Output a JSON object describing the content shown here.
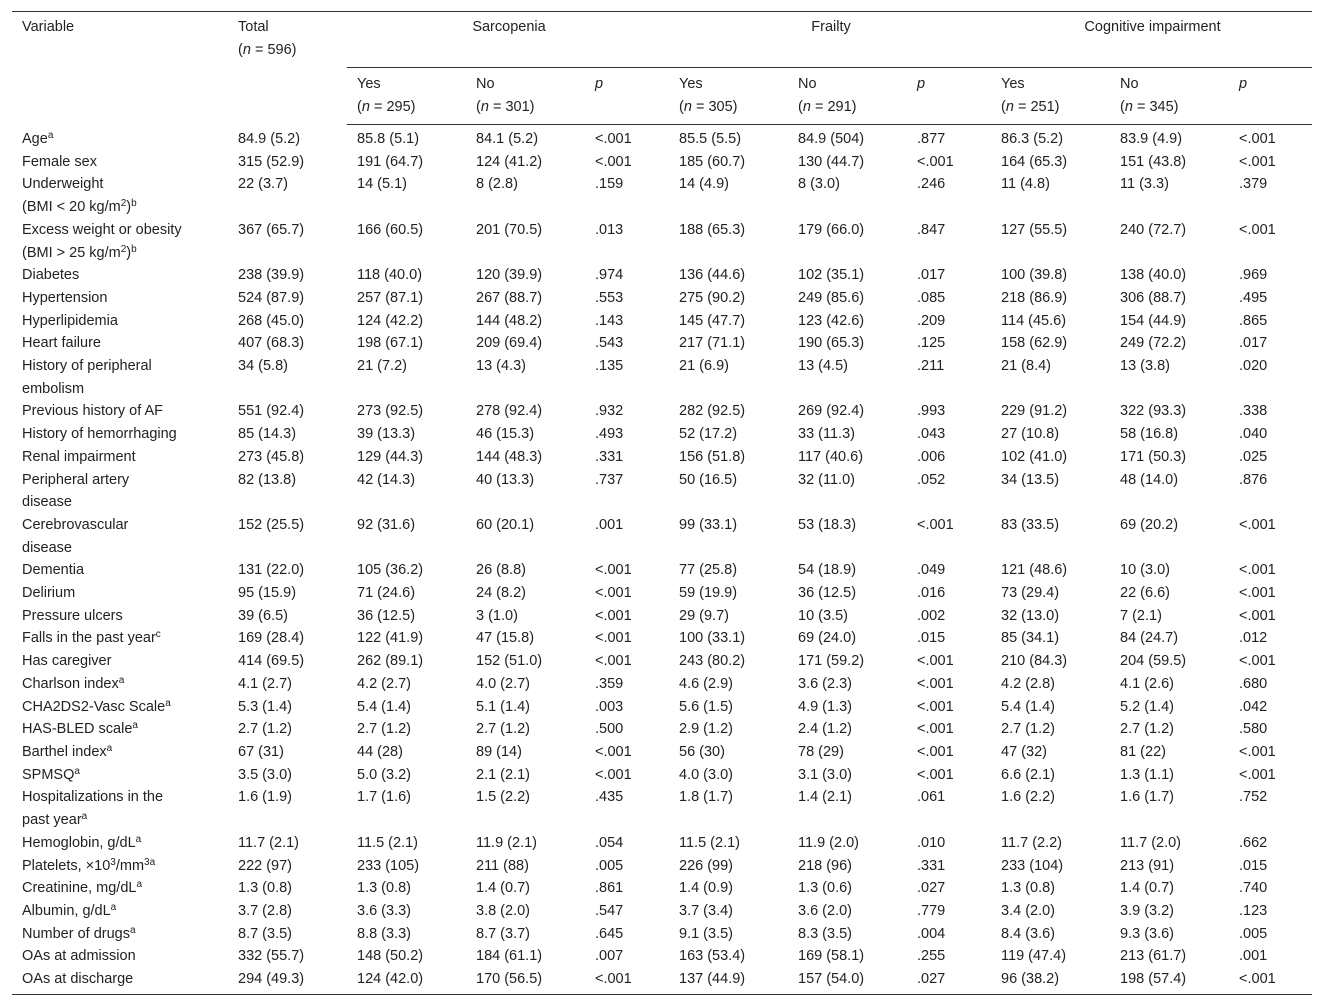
{
  "table": {
    "header_top": [
      [
        [
          "Variable"
        ]
      ],
      [
        [
          "Total"
        ],
        [
          "(",
          {
            "i": "n"
          },
          " = 596)"
        ]
      ],
      [
        [
          "Sarcopenia"
        ]
      ],
      [
        [
          "Frailty"
        ]
      ],
      [
        [
          "Cognitive impairment"
        ]
      ]
    ],
    "header_sub": [
      [
        [
          "Yes"
        ],
        [
          "(",
          {
            "i": "n"
          },
          " = 295)"
        ]
      ],
      [
        [
          "No"
        ],
        [
          "(",
          {
            "i": "n"
          },
          " = 301)"
        ]
      ],
      [
        [
          {
            "i": "p"
          }
        ]
      ],
      [
        [
          "Yes"
        ],
        [
          "(",
          {
            "i": "n"
          },
          " = 305)"
        ]
      ],
      [
        [
          "No"
        ],
        [
          "(",
          {
            "i": "n"
          },
          " = 291)"
        ]
      ],
      [
        [
          {
            "i": "p"
          }
        ]
      ],
      [
        [
          "Yes"
        ],
        [
          "(",
          {
            "i": "n"
          },
          " = 251)"
        ]
      ],
      [
        [
          "No"
        ],
        [
          "(",
          {
            "i": "n"
          },
          " = 345)"
        ]
      ],
      [
        [
          {
            "i": "p"
          }
        ]
      ]
    ],
    "rows": [
      {
        "label": [
          [
            "Age",
            {
              "sup": "a"
            }
          ]
        ],
        "values": [
          "84.9 (5.2)",
          "85.8 (5.1)",
          "84.1 (5.2)",
          "<.001",
          "85.5 (5.5)",
          "84.9 (504)",
          ".877",
          "86.3 (5.2)",
          "83.9 (4.9)",
          "<.001"
        ]
      },
      {
        "label": [
          [
            "Female sex"
          ]
        ],
        "values": [
          "315 (52.9)",
          "191 (64.7)",
          "124 (41.2)",
          "<.001",
          "185 (60.7)",
          "130 (44.7)",
          "<.001",
          "164 (65.3)",
          "151 (43.8)",
          "<.001"
        ]
      },
      {
        "label": [
          [
            "Underweight"
          ],
          [
            "(BMI < 20 kg/m",
            {
              "sup": "2"
            },
            ")",
            {
              "sup": "b"
            }
          ]
        ],
        "values": [
          "22 (3.7)",
          "14 (5.1)",
          "8 (2.8)",
          ".159",
          "14 (4.9)",
          "8 (3.0)",
          ".246",
          "11 (4.8)",
          "11 (3.3)",
          ".379"
        ]
      },
      {
        "label": [
          [
            "Excess weight or obesity"
          ],
          [
            "(BMI > 25 kg/m",
            {
              "sup": "2"
            },
            ")",
            {
              "sup": "b"
            }
          ]
        ],
        "values": [
          "367 (65.7)",
          "166 (60.5)",
          "201 (70.5)",
          ".013",
          "188 (65.3)",
          "179 (66.0)",
          ".847",
          "127 (55.5)",
          "240 (72.7)",
          "<.001"
        ]
      },
      {
        "label": [
          [
            "Diabetes"
          ]
        ],
        "values": [
          "238 (39.9)",
          "118 (40.0)",
          "120 (39.9)",
          ".974",
          "136 (44.6)",
          "102 (35.1)",
          ".017",
          "100 (39.8)",
          "138 (40.0)",
          ".969"
        ]
      },
      {
        "label": [
          [
            "Hypertension"
          ]
        ],
        "values": [
          "524 (87.9)",
          "257 (87.1)",
          "267 (88.7)",
          ".553",
          "275 (90.2)",
          "249 (85.6)",
          ".085",
          "218 (86.9)",
          "306 (88.7)",
          ".495"
        ]
      },
      {
        "label": [
          [
            "Hyperlipidemia"
          ]
        ],
        "values": [
          "268 (45.0)",
          "124 (42.2)",
          "144 (48.2)",
          ".143",
          "145 (47.7)",
          "123 (42.6)",
          ".209",
          "114 (45.6)",
          "154 (44.9)",
          ".865"
        ]
      },
      {
        "label": [
          [
            "Heart failure"
          ]
        ],
        "values": [
          "407 (68.3)",
          "198 (67.1)",
          "209 (69.4)",
          ".543",
          "217 (71.1)",
          "190 (65.3)",
          ".125",
          "158 (62.9)",
          "249 (72.2)",
          ".017"
        ]
      },
      {
        "label": [
          [
            "History of peripheral"
          ],
          [
            "embolism"
          ]
        ],
        "values": [
          "34 (5.8)",
          "21 (7.2)",
          "13 (4.3)",
          ".135",
          "21 (6.9)",
          "13 (4.5)",
          ".211",
          "21 (8.4)",
          "13 (3.8)",
          ".020"
        ]
      },
      {
        "label": [
          [
            "Previous history of AF"
          ]
        ],
        "values": [
          "551 (92.4)",
          "273 (92.5)",
          "278 (92.4)",
          ".932",
          "282 (92.5)",
          "269 (92.4)",
          ".993",
          "229 (91.2)",
          "322 (93.3)",
          ".338"
        ]
      },
      {
        "label": [
          [
            "History of hemorrhaging"
          ]
        ],
        "values": [
          "85 (14.3)",
          "39 (13.3)",
          "46 (15.3)",
          ".493",
          "52 (17.2)",
          "33 (11.3)",
          ".043",
          "27 (10.8)",
          "58 (16.8)",
          ".040"
        ]
      },
      {
        "label": [
          [
            "Renal impairment"
          ]
        ],
        "values": [
          "273 (45.8)",
          "129 (44.3)",
          "144 (48.3)",
          ".331",
          "156 (51.8)",
          "117 (40.6)",
          ".006",
          "102 (41.0)",
          "171 (50.3)",
          ".025"
        ]
      },
      {
        "label": [
          [
            "Peripheral artery"
          ],
          [
            "disease"
          ]
        ],
        "values": [
          "82 (13.8)",
          "42 (14.3)",
          "40 (13.3)",
          ".737",
          "50 (16.5)",
          "32 (11.0)",
          ".052",
          "34 (13.5)",
          "48 (14.0)",
          ".876"
        ]
      },
      {
        "label": [
          [
            "Cerebrovascular"
          ],
          [
            "disease"
          ]
        ],
        "values": [
          "152 (25.5)",
          "92 (31.6)",
          "60 (20.1)",
          ".001",
          "99 (33.1)",
          "53 (18.3)",
          "<.001",
          "83 (33.5)",
          "69 (20.2)",
          "<.001"
        ]
      },
      {
        "label": [
          [
            "Dementia"
          ]
        ],
        "values": [
          "131 (22.0)",
          "105 (36.2)",
          "26 (8.8)",
          "<.001",
          "77 (25.8)",
          "54 (18.9)",
          ".049",
          "121 (48.6)",
          "10 (3.0)",
          "<.001"
        ]
      },
      {
        "label": [
          [
            "Delirium"
          ]
        ],
        "values": [
          "95 (15.9)",
          "71 (24.6)",
          "24 (8.2)",
          "<.001",
          "59 (19.9)",
          "36 (12.5)",
          ".016",
          "73 (29.4)",
          "22 (6.6)",
          "<.001"
        ]
      },
      {
        "label": [
          [
            "Pressure ulcers"
          ]
        ],
        "values": [
          "39 (6.5)",
          "36 (12.5)",
          "3 (1.0)",
          "<.001",
          "29 (9.7)",
          "10 (3.5)",
          ".002",
          "32 (13.0)",
          "7 (2.1)",
          "<.001"
        ]
      },
      {
        "label": [
          [
            "Falls in the past year",
            {
              "sup": "c"
            }
          ]
        ],
        "values": [
          "169 (28.4)",
          "122 (41.9)",
          "47 (15.8)",
          "<.001",
          "100 (33.1)",
          "69 (24.0)",
          ".015",
          "85 (34.1)",
          "84 (24.7)",
          ".012"
        ]
      },
      {
        "label": [
          [
            "Has caregiver"
          ]
        ],
        "values": [
          "414 (69.5)",
          "262 (89.1)",
          "152 (51.0)",
          "<.001",
          "243 (80.2)",
          "171 (59.2)",
          "<.001",
          "210 (84.3)",
          "204 (59.5)",
          "<.001"
        ]
      },
      {
        "label": [
          [
            "Charlson index",
            {
              "sup": "a"
            }
          ]
        ],
        "values": [
          "4.1 (2.7)",
          "4.2 (2.7)",
          "4.0 (2.7)",
          ".359",
          "4.6 (2.9)",
          "3.6 (2.3)",
          "<.001",
          "4.2 (2.8)",
          "4.1 (2.6)",
          ".680"
        ]
      },
      {
        "label": [
          [
            "CHA2DS2-Vasc Scale",
            {
              "sup": "a"
            }
          ]
        ],
        "values": [
          "5.3 (1.4)",
          "5.4 (1.4)",
          "5.1 (1.4)",
          ".003",
          "5.6 (1.5)",
          "4.9 (1.3)",
          "<.001",
          "5.4 (1.4)",
          "5.2 (1.4)",
          ".042"
        ]
      },
      {
        "label": [
          [
            "HAS-BLED scale",
            {
              "sup": "a"
            }
          ]
        ],
        "values": [
          "2.7 (1.2)",
          "2.7 (1.2)",
          "2.7 (1.2)",
          ".500",
          "2.9 (1.2)",
          "2.4 (1.2)",
          "<.001",
          "2.7 (1.2)",
          "2.7 (1.2)",
          ".580"
        ]
      },
      {
        "label": [
          [
            "Barthel index",
            {
              "sup": "a"
            }
          ]
        ],
        "values": [
          "67 (31)",
          "44 (28)",
          "89 (14)",
          "<.001",
          "56 (30)",
          "78 (29)",
          "<.001",
          "47 (32)",
          "81 (22)",
          "<.001"
        ]
      },
      {
        "label": [
          [
            "SPMSQ",
            {
              "sup": "a"
            }
          ]
        ],
        "values": [
          "3.5 (3.0)",
          "5.0 (3.2)",
          "2.1 (2.1)",
          "<.001",
          "4.0 (3.0)",
          "3.1 (3.0)",
          "<.001",
          "6.6 (2.1)",
          "1.3 (1.1)",
          "<.001"
        ]
      },
      {
        "label": [
          [
            "Hospitalizations in the"
          ],
          [
            "past year",
            {
              "sup": "a"
            }
          ]
        ],
        "values": [
          "1.6 (1.9)",
          "1.7 (1.6)",
          "1.5 (2.2)",
          ".435",
          "1.8 (1.7)",
          "1.4 (2.1)",
          ".061",
          "1.6 (2.2)",
          "1.6 (1.7)",
          ".752"
        ]
      },
      {
        "label": [
          [
            "Hemoglobin, g/dL",
            {
              "sup": "a"
            }
          ]
        ],
        "values": [
          "11.7 (2.1)",
          "11.5 (2.1)",
          "11.9 (2.1)",
          ".054",
          "11.5 (2.1)",
          "11.9 (2.0)",
          ".010",
          "11.7 (2.2)",
          "11.7 (2.0)",
          ".662"
        ]
      },
      {
        "label": [
          [
            "Platelets, ×10",
            {
              "sup": "3"
            },
            "/mm",
            {
              "sup": "3a"
            }
          ]
        ],
        "values": [
          "222 (97)",
          "233 (105)",
          "211 (88)",
          ".005",
          "226 (99)",
          "218 (96)",
          ".331",
          "233 (104)",
          "213 (91)",
          ".015"
        ]
      },
      {
        "label": [
          [
            "Creatinine, mg/dL",
            {
              "sup": "a"
            }
          ]
        ],
        "values": [
          "1.3 (0.8)",
          "1.3 (0.8)",
          "1.4 (0.7)",
          ".861",
          "1.4 (0.9)",
          "1.3 (0.6)",
          ".027",
          "1.3 (0.8)",
          "1.4 (0.7)",
          ".740"
        ]
      },
      {
        "label": [
          [
            "Albumin, g/dL",
            {
              "sup": "a"
            }
          ]
        ],
        "values": [
          "3.7 (2.8)",
          "3.6 (3.3)",
          "3.8 (2.0)",
          ".547",
          "3.7 (3.4)",
          "3.6 (2.0)",
          ".779",
          "3.4 (2.0)",
          "3.9 (3.2)",
          ".123"
        ]
      },
      {
        "label": [
          [
            "Number of drugs",
            {
              "sup": "a"
            }
          ]
        ],
        "values": [
          "8.7 (3.5)",
          "8.8 (3.3)",
          "8.7 (3.7)",
          ".645",
          "9.1 (3.5)",
          "8.3 (3.5)",
          ".004",
          "8.4 (3.6)",
          "9.3 (3.6)",
          ".005"
        ]
      },
      {
        "label": [
          [
            "OAs at admission"
          ]
        ],
        "values": [
          "332 (55.7)",
          "148 (50.2)",
          "184 (61.1)",
          ".007",
          "163 (53.4)",
          "169 (58.1)",
          ".255",
          "119 (47.4)",
          "213 (61.7)",
          ".001"
        ]
      },
      {
        "label": [
          [
            "OAs at discharge"
          ]
        ],
        "values": [
          "294 (49.3)",
          "124 (42.0)",
          "170 (56.5)",
          "<.001",
          "137 (44.9)",
          "157 (54.0)",
          ".027",
          "96 (38.2)",
          "198 (57.4)",
          "<.001"
        ]
      }
    ]
  }
}
